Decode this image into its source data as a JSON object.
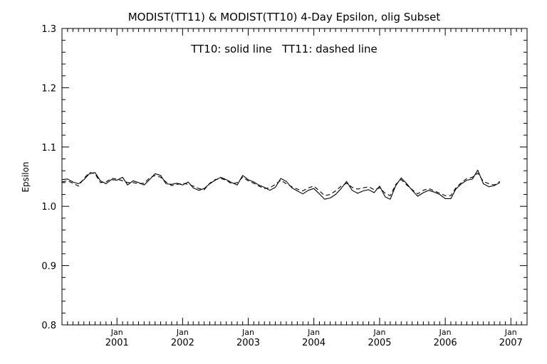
{
  "chart_data": {
    "type": "line",
    "title": "MODIST(TT11) & MODIST(TT10) 4-Day Epsilon, olig Subset",
    "annotation": "TT10: solid line   TT11: dashed line",
    "xlabel": "",
    "ylabel": "Epsilon",
    "ylim": [
      0.8,
      1.3
    ],
    "yticks": [
      "0.8",
      "0.9",
      "1.0",
      "1.1",
      "1.2",
      "1.3"
    ],
    "xlim": [
      "2000-03-01",
      "2007-04-01"
    ],
    "xticks": [
      {
        "month": "Jan",
        "year": "2001",
        "date": "2001-01-01"
      },
      {
        "month": "Jan",
        "year": "2002",
        "date": "2002-01-01"
      },
      {
        "month": "Jan",
        "year": "2003",
        "date": "2003-01-01"
      },
      {
        "month": "Jan",
        "year": "2004",
        "date": "2004-01-01"
      },
      {
        "month": "Jan",
        "year": "2005",
        "date": "2005-01-01"
      },
      {
        "month": "Jan",
        "year": "2006",
        "date": "2006-01-01"
      },
      {
        "month": "Jan",
        "year": "2007",
        "date": "2007-01-01"
      }
    ],
    "grid": false,
    "series": [
      {
        "name": "TT10",
        "style": "solid",
        "color": "#000000",
        "points": [
          [
            "2000-03-01",
            1.045
          ],
          [
            "2000-04-01",
            1.046
          ],
          [
            "2000-05-01",
            1.041
          ],
          [
            "2000-06-01",
            1.038
          ],
          [
            "2000-07-01",
            1.045
          ],
          [
            "2000-08-01",
            1.055
          ],
          [
            "2000-09-01",
            1.057
          ],
          [
            "2000-10-01",
            1.043
          ],
          [
            "2000-11-01",
            1.038
          ],
          [
            "2000-12-01",
            1.045
          ],
          [
            "2001-01-01",
            1.044
          ],
          [
            "2001-02-01",
            1.049
          ],
          [
            "2001-03-01",
            1.036
          ],
          [
            "2001-04-01",
            1.043
          ],
          [
            "2001-05-01",
            1.04
          ],
          [
            "2001-06-01",
            1.036
          ],
          [
            "2001-07-01",
            1.045
          ],
          [
            "2001-08-01",
            1.055
          ],
          [
            "2001-09-01",
            1.052
          ],
          [
            "2001-10-01",
            1.038
          ],
          [
            "2001-11-01",
            1.037
          ],
          [
            "2001-12-01",
            1.039
          ],
          [
            "2002-01-01",
            1.036
          ],
          [
            "2002-02-01",
            1.041
          ],
          [
            "2002-03-01",
            1.031
          ],
          [
            "2002-04-01",
            1.027
          ],
          [
            "2002-05-01",
            1.03
          ],
          [
            "2002-06-01",
            1.038
          ],
          [
            "2002-07-01",
            1.044
          ],
          [
            "2002-08-01",
            1.049
          ],
          [
            "2002-09-01",
            1.045
          ],
          [
            "2002-10-01",
            1.04
          ],
          [
            "2002-11-01",
            1.036
          ],
          [
            "2002-12-01",
            1.052
          ],
          [
            "2003-01-01",
            1.045
          ],
          [
            "2003-02-01",
            1.041
          ],
          [
            "2003-03-01",
            1.036
          ],
          [
            "2003-04-01",
            1.032
          ],
          [
            "2003-05-01",
            1.027
          ],
          [
            "2003-06-01",
            1.032
          ],
          [
            "2003-07-01",
            1.047
          ],
          [
            "2003-08-01",
            1.042
          ],
          [
            "2003-09-01",
            1.031
          ],
          [
            "2003-10-01",
            1.026
          ],
          [
            "2003-11-01",
            1.021
          ],
          [
            "2003-12-01",
            1.027
          ],
          [
            "2004-01-01",
            1.03
          ],
          [
            "2004-02-01",
            1.021
          ],
          [
            "2004-03-01",
            1.012
          ],
          [
            "2004-04-01",
            1.014
          ],
          [
            "2004-05-01",
            1.02
          ],
          [
            "2004-06-01",
            1.03
          ],
          [
            "2004-07-01",
            1.042
          ],
          [
            "2004-08-01",
            1.027
          ],
          [
            "2004-09-01",
            1.022
          ],
          [
            "2004-10-01",
            1.026
          ],
          [
            "2004-11-01",
            1.028
          ],
          [
            "2004-12-01",
            1.023
          ],
          [
            "2005-01-01",
            1.034
          ],
          [
            "2005-02-01",
            1.016
          ],
          [
            "2005-03-01",
            1.012
          ],
          [
            "2005-04-01",
            1.035
          ],
          [
            "2005-05-01",
            1.048
          ],
          [
            "2005-06-01",
            1.038
          ],
          [
            "2005-07-01",
            1.027
          ],
          [
            "2005-08-01",
            1.017
          ],
          [
            "2005-09-01",
            1.023
          ],
          [
            "2005-10-01",
            1.027
          ],
          [
            "2005-11-01",
            1.024
          ],
          [
            "2005-12-01",
            1.02
          ],
          [
            "2006-01-01",
            1.013
          ],
          [
            "2006-02-01",
            1.013
          ],
          [
            "2006-03-01",
            1.029
          ],
          [
            "2006-04-01",
            1.038
          ],
          [
            "2006-05-01",
            1.044
          ],
          [
            "2006-06-01",
            1.046
          ],
          [
            "2006-07-01",
            1.061
          ],
          [
            "2006-08-01",
            1.038
          ],
          [
            "2006-09-01",
            1.033
          ],
          [
            "2006-10-01",
            1.035
          ],
          [
            "2006-11-01",
            1.04
          ]
        ]
      },
      {
        "name": "TT11",
        "style": "dashed",
        "color": "#000000",
        "points": [
          [
            "2000-03-01",
            1.041
          ],
          [
            "2000-04-01",
            1.043
          ],
          [
            "2000-05-01",
            1.039
          ],
          [
            "2000-06-01",
            1.034
          ],
          [
            "2000-07-01",
            1.047
          ],
          [
            "2000-08-01",
            1.057
          ],
          [
            "2000-09-01",
            1.055
          ],
          [
            "2000-10-01",
            1.04
          ],
          [
            "2000-11-01",
            1.041
          ],
          [
            "2000-12-01",
            1.047
          ],
          [
            "2001-01-01",
            1.046
          ],
          [
            "2001-02-01",
            1.043
          ],
          [
            "2001-03-01",
            1.04
          ],
          [
            "2001-04-01",
            1.04
          ],
          [
            "2001-05-01",
            1.038
          ],
          [
            "2001-06-01",
            1.039
          ],
          [
            "2001-07-01",
            1.048
          ],
          [
            "2001-08-01",
            1.052
          ],
          [
            "2001-09-01",
            1.049
          ],
          [
            "2001-10-01",
            1.041
          ],
          [
            "2001-11-01",
            1.035
          ],
          [
            "2001-12-01",
            1.037
          ],
          [
            "2002-01-01",
            1.039
          ],
          [
            "2002-02-01",
            1.037
          ],
          [
            "2002-03-01",
            1.034
          ],
          [
            "2002-04-01",
            1.03
          ],
          [
            "2002-05-01",
            1.028
          ],
          [
            "2002-06-01",
            1.039
          ],
          [
            "2002-07-01",
            1.045
          ],
          [
            "2002-08-01",
            1.047
          ],
          [
            "2002-09-01",
            1.044
          ],
          [
            "2002-10-01",
            1.038
          ],
          [
            "2002-11-01",
            1.04
          ],
          [
            "2002-12-01",
            1.049
          ],
          [
            "2003-01-01",
            1.043
          ],
          [
            "2003-02-01",
            1.039
          ],
          [
            "2003-03-01",
            1.034
          ],
          [
            "2003-04-01",
            1.03
          ],
          [
            "2003-05-01",
            1.031
          ],
          [
            "2003-06-01",
            1.037
          ],
          [
            "2003-07-01",
            1.044
          ],
          [
            "2003-08-01",
            1.038
          ],
          [
            "2003-09-01",
            1.033
          ],
          [
            "2003-10-01",
            1.029
          ],
          [
            "2003-11-01",
            1.026
          ],
          [
            "2003-12-01",
            1.031
          ],
          [
            "2004-01-01",
            1.034
          ],
          [
            "2004-02-01",
            1.026
          ],
          [
            "2004-03-01",
            1.018
          ],
          [
            "2004-04-01",
            1.02
          ],
          [
            "2004-05-01",
            1.026
          ],
          [
            "2004-06-01",
            1.034
          ],
          [
            "2004-07-01",
            1.039
          ],
          [
            "2004-08-01",
            1.032
          ],
          [
            "2004-09-01",
            1.029
          ],
          [
            "2004-10-01",
            1.031
          ],
          [
            "2004-11-01",
            1.033
          ],
          [
            "2004-12-01",
            1.028
          ],
          [
            "2005-01-01",
            1.031
          ],
          [
            "2005-02-01",
            1.022
          ],
          [
            "2005-03-01",
            1.018
          ],
          [
            "2005-04-01",
            1.037
          ],
          [
            "2005-05-01",
            1.045
          ],
          [
            "2005-06-01",
            1.036
          ],
          [
            "2005-07-01",
            1.028
          ],
          [
            "2005-08-01",
            1.021
          ],
          [
            "2005-09-01",
            1.027
          ],
          [
            "2005-10-01",
            1.03
          ],
          [
            "2005-11-01",
            1.026
          ],
          [
            "2005-12-01",
            1.022
          ],
          [
            "2006-01-01",
            1.018
          ],
          [
            "2006-02-01",
            1.018
          ],
          [
            "2006-03-01",
            1.031
          ],
          [
            "2006-04-01",
            1.04
          ],
          [
            "2006-05-01",
            1.047
          ],
          [
            "2006-06-01",
            1.049
          ],
          [
            "2006-07-01",
            1.056
          ],
          [
            "2006-08-01",
            1.042
          ],
          [
            "2006-09-01",
            1.038
          ],
          [
            "2006-10-01",
            1.036
          ],
          [
            "2006-11-01",
            1.042
          ]
        ]
      }
    ]
  }
}
